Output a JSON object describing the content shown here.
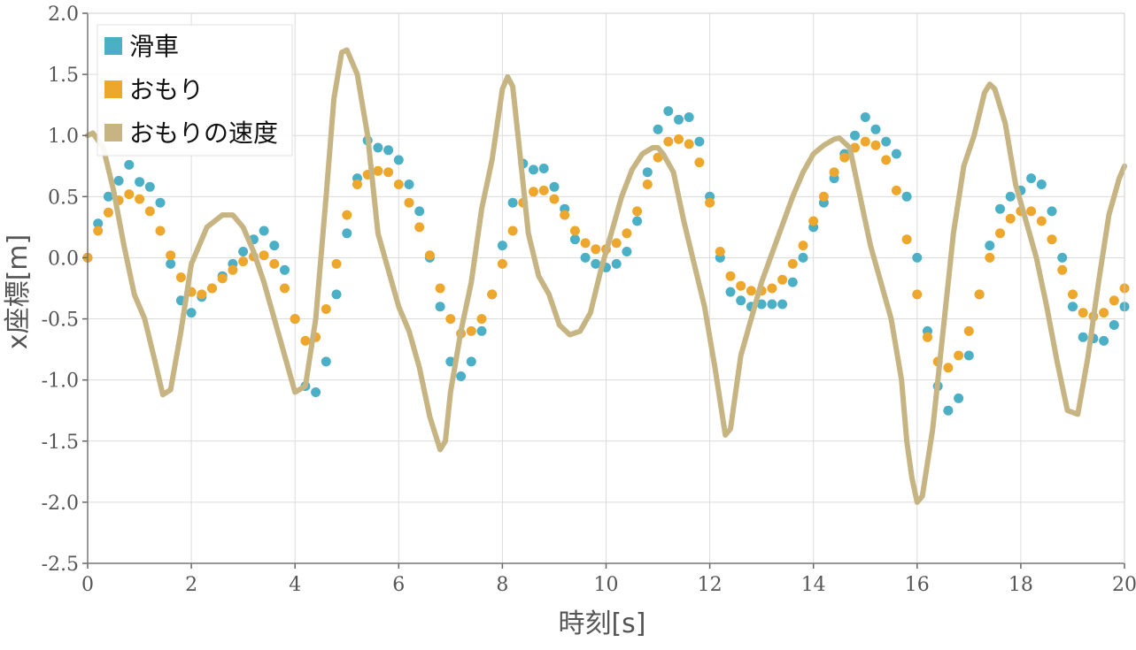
{
  "chart_data": {
    "type": "scatter",
    "xlabel": "時刻[s]",
    "ylabel": "x座標[m]",
    "xlim": [
      0,
      20
    ],
    "ylim": [
      -2.5,
      2.0
    ],
    "x_ticks": [
      "0",
      "2",
      "4",
      "6",
      "8",
      "10",
      "12",
      "14",
      "16",
      "18",
      "20"
    ],
    "y_ticks": [
      "2.0",
      "1.5",
      "1.0",
      "0.5",
      "0.0",
      "-0.5",
      "-1.0",
      "-1.5",
      "-2.0",
      "-2.5"
    ],
    "grid": true,
    "legend_position": "top-left",
    "series": [
      {
        "name": "滑車",
        "style": "points",
        "color": "#4bafc6",
        "points": [
          [
            0.0,
            0.0
          ],
          [
            0.2,
            0.28
          ],
          [
            0.4,
            0.5
          ],
          [
            0.6,
            0.63
          ],
          [
            0.8,
            0.76
          ],
          [
            1.0,
            0.62
          ],
          [
            1.2,
            0.58
          ],
          [
            1.4,
            0.45
          ],
          [
            1.6,
            -0.05
          ],
          [
            1.8,
            -0.35
          ],
          [
            2.0,
            -0.45
          ],
          [
            2.2,
            -0.32
          ],
          [
            2.4,
            -0.25
          ],
          [
            2.6,
            -0.15
          ],
          [
            2.8,
            -0.05
          ],
          [
            3.0,
            0.05
          ],
          [
            3.2,
            0.15
          ],
          [
            3.4,
            0.22
          ],
          [
            3.6,
            0.1
          ],
          [
            3.8,
            -0.1
          ],
          [
            4.0,
            -0.5
          ],
          [
            4.2,
            -1.05
          ],
          [
            4.4,
            -1.1
          ],
          [
            4.6,
            -0.85
          ],
          [
            4.8,
            -0.3
          ],
          [
            5.0,
            0.2
          ],
          [
            5.2,
            0.65
          ],
          [
            5.4,
            0.96
          ],
          [
            5.6,
            0.9
          ],
          [
            5.8,
            0.88
          ],
          [
            6.0,
            0.8
          ],
          [
            6.2,
            0.6
          ],
          [
            6.4,
            0.38
          ],
          [
            6.6,
            0.0
          ],
          [
            6.8,
            -0.4
          ],
          [
            7.0,
            -0.85
          ],
          [
            7.2,
            -0.97
          ],
          [
            7.4,
            -0.85
          ],
          [
            7.6,
            -0.6
          ],
          [
            7.8,
            -0.3
          ],
          [
            8.0,
            0.1
          ],
          [
            8.2,
            0.45
          ],
          [
            8.4,
            0.77
          ],
          [
            8.6,
            0.72
          ],
          [
            8.8,
            0.73
          ],
          [
            9.0,
            0.58
          ],
          [
            9.2,
            0.4
          ],
          [
            9.4,
            0.15
          ],
          [
            9.6,
            0.0
          ],
          [
            9.8,
            -0.05
          ],
          [
            10.0,
            -0.08
          ],
          [
            10.2,
            -0.05
          ],
          [
            10.4,
            0.05
          ],
          [
            10.6,
            0.3
          ],
          [
            10.8,
            0.7
          ],
          [
            11.0,
            1.05
          ],
          [
            11.2,
            1.2
          ],
          [
            11.4,
            1.13
          ],
          [
            11.6,
            1.15
          ],
          [
            11.8,
            0.95
          ],
          [
            12.0,
            0.5
          ],
          [
            12.2,
            0.0
          ],
          [
            12.4,
            -0.28
          ],
          [
            12.6,
            -0.35
          ],
          [
            12.8,
            -0.4
          ],
          [
            13.0,
            -0.38
          ],
          [
            13.2,
            -0.38
          ],
          [
            13.4,
            -0.38
          ],
          [
            13.6,
            -0.2
          ],
          [
            13.8,
            0.0
          ],
          [
            14.0,
            0.25
          ],
          [
            14.2,
            0.45
          ],
          [
            14.4,
            0.65
          ],
          [
            14.6,
            0.85
          ],
          [
            14.8,
            1.0
          ],
          [
            15.0,
            1.15
          ],
          [
            15.2,
            1.05
          ],
          [
            15.4,
            0.95
          ],
          [
            15.6,
            0.85
          ],
          [
            15.8,
            0.5
          ],
          [
            16.0,
            0.0
          ],
          [
            16.2,
            -0.6
          ],
          [
            16.4,
            -1.05
          ],
          [
            16.6,
            -1.25
          ],
          [
            16.8,
            -1.15
          ],
          [
            17.0,
            -0.8
          ],
          [
            17.2,
            -0.3
          ],
          [
            17.4,
            0.1
          ],
          [
            17.6,
            0.4
          ],
          [
            17.8,
            0.5
          ],
          [
            18.0,
            0.55
          ],
          [
            18.2,
            0.65
          ],
          [
            18.4,
            0.6
          ],
          [
            18.6,
            0.38
          ],
          [
            18.8,
            0.0
          ],
          [
            19.0,
            -0.4
          ],
          [
            19.2,
            -0.65
          ],
          [
            19.4,
            -0.66
          ],
          [
            19.6,
            -0.68
          ],
          [
            19.8,
            -0.55
          ],
          [
            20.0,
            -0.4
          ]
        ]
      },
      {
        "name": "おもり",
        "style": "points",
        "color": "#eea72d",
        "points": [
          [
            0.0,
            0.0
          ],
          [
            0.2,
            0.22
          ],
          [
            0.4,
            0.37
          ],
          [
            0.6,
            0.47
          ],
          [
            0.8,
            0.52
          ],
          [
            1.0,
            0.48
          ],
          [
            1.2,
            0.38
          ],
          [
            1.4,
            0.22
          ],
          [
            1.6,
            0.02
          ],
          [
            1.8,
            -0.16
          ],
          [
            2.0,
            -0.28
          ],
          [
            2.2,
            -0.3
          ],
          [
            2.4,
            -0.25
          ],
          [
            2.6,
            -0.17
          ],
          [
            2.8,
            -0.1
          ],
          [
            3.0,
            -0.03
          ],
          [
            3.2,
            0.01
          ],
          [
            3.4,
            0.02
          ],
          [
            3.6,
            -0.05
          ],
          [
            3.8,
            -0.25
          ],
          [
            4.0,
            -0.5
          ],
          [
            4.2,
            -0.68
          ],
          [
            4.4,
            -0.65
          ],
          [
            4.6,
            -0.42
          ],
          [
            4.8,
            -0.05
          ],
          [
            5.0,
            0.35
          ],
          [
            5.2,
            0.6
          ],
          [
            5.4,
            0.68
          ],
          [
            5.6,
            0.71
          ],
          [
            5.8,
            0.7
          ],
          [
            6.0,
            0.6
          ],
          [
            6.2,
            0.45
          ],
          [
            6.4,
            0.25
          ],
          [
            6.6,
            0.02
          ],
          [
            6.8,
            -0.25
          ],
          [
            7.0,
            -0.5
          ],
          [
            7.2,
            -0.62
          ],
          [
            7.4,
            -0.6
          ],
          [
            7.6,
            -0.5
          ],
          [
            7.8,
            -0.3
          ],
          [
            8.0,
            -0.05
          ],
          [
            8.2,
            0.22
          ],
          [
            8.4,
            0.45
          ],
          [
            8.6,
            0.54
          ],
          [
            8.8,
            0.55
          ],
          [
            9.0,
            0.48
          ],
          [
            9.2,
            0.35
          ],
          [
            9.4,
            0.22
          ],
          [
            9.6,
            0.12
          ],
          [
            9.8,
            0.07
          ],
          [
            10.0,
            0.07
          ],
          [
            10.2,
            0.12
          ],
          [
            10.4,
            0.2
          ],
          [
            10.6,
            0.38
          ],
          [
            10.8,
            0.6
          ],
          [
            11.0,
            0.82
          ],
          [
            11.2,
            0.95
          ],
          [
            11.4,
            0.97
          ],
          [
            11.6,
            0.93
          ],
          [
            11.8,
            0.78
          ],
          [
            12.0,
            0.45
          ],
          [
            12.2,
            0.05
          ],
          [
            12.4,
            -0.15
          ],
          [
            12.6,
            -0.23
          ],
          [
            12.8,
            -0.27
          ],
          [
            13.0,
            -0.27
          ],
          [
            13.2,
            -0.25
          ],
          [
            13.4,
            -0.18
          ],
          [
            13.6,
            -0.05
          ],
          [
            13.8,
            0.1
          ],
          [
            14.0,
            0.3
          ],
          [
            14.2,
            0.5
          ],
          [
            14.4,
            0.7
          ],
          [
            14.6,
            0.82
          ],
          [
            14.8,
            0.9
          ],
          [
            15.0,
            0.95
          ],
          [
            15.2,
            0.92
          ],
          [
            15.4,
            0.8
          ],
          [
            15.6,
            0.55
          ],
          [
            15.8,
            0.15
          ],
          [
            16.0,
            -0.3
          ],
          [
            16.2,
            -0.65
          ],
          [
            16.4,
            -0.85
          ],
          [
            16.6,
            -0.9
          ],
          [
            16.8,
            -0.8
          ],
          [
            17.0,
            -0.6
          ],
          [
            17.2,
            -0.3
          ],
          [
            17.4,
            0.0
          ],
          [
            17.6,
            0.2
          ],
          [
            17.8,
            0.32
          ],
          [
            18.0,
            0.38
          ],
          [
            18.2,
            0.38
          ],
          [
            18.4,
            0.3
          ],
          [
            18.6,
            0.15
          ],
          [
            18.8,
            -0.1
          ],
          [
            19.0,
            -0.3
          ],
          [
            19.2,
            -0.45
          ],
          [
            19.4,
            -0.48
          ],
          [
            19.6,
            -0.45
          ],
          [
            19.8,
            -0.35
          ],
          [
            20.0,
            -0.25
          ]
        ]
      },
      {
        "name": "おもりの速度",
        "style": "line",
        "color": "#c7b483",
        "points": [
          [
            0.0,
            1.0
          ],
          [
            0.1,
            1.02
          ],
          [
            0.3,
            0.9
          ],
          [
            0.5,
            0.55
          ],
          [
            0.7,
            0.1
          ],
          [
            0.9,
            -0.3
          ],
          [
            1.1,
            -0.5
          ],
          [
            1.3,
            -0.85
          ],
          [
            1.45,
            -1.12
          ],
          [
            1.6,
            -1.08
          ],
          [
            1.8,
            -0.6
          ],
          [
            2.0,
            -0.05
          ],
          [
            2.3,
            0.25
          ],
          [
            2.6,
            0.35
          ],
          [
            2.8,
            0.35
          ],
          [
            3.0,
            0.25
          ],
          [
            3.2,
            0.05
          ],
          [
            3.4,
            -0.2
          ],
          [
            3.6,
            -0.5
          ],
          [
            3.8,
            -0.8
          ],
          [
            4.0,
            -1.1
          ],
          [
            4.2,
            -1.05
          ],
          [
            4.4,
            -0.5
          ],
          [
            4.6,
            0.5
          ],
          [
            4.75,
            1.3
          ],
          [
            4.9,
            1.68
          ],
          [
            5.0,
            1.7
          ],
          [
            5.2,
            1.5
          ],
          [
            5.4,
            1.0
          ],
          [
            5.6,
            0.2
          ],
          [
            5.8,
            -0.1
          ],
          [
            6.0,
            -0.4
          ],
          [
            6.2,
            -0.6
          ],
          [
            6.4,
            -0.9
          ],
          [
            6.6,
            -1.3
          ],
          [
            6.8,
            -1.57
          ],
          [
            6.9,
            -1.5
          ],
          [
            7.0,
            -1.1
          ],
          [
            7.2,
            -0.6
          ],
          [
            7.4,
            -0.2
          ],
          [
            7.6,
            0.4
          ],
          [
            7.8,
            0.8
          ],
          [
            8.0,
            1.38
          ],
          [
            8.1,
            1.48
          ],
          [
            8.2,
            1.4
          ],
          [
            8.3,
            1.0
          ],
          [
            8.5,
            0.2
          ],
          [
            8.7,
            -0.15
          ],
          [
            8.9,
            -0.3
          ],
          [
            9.1,
            -0.55
          ],
          [
            9.3,
            -0.63
          ],
          [
            9.5,
            -0.6
          ],
          [
            9.7,
            -0.45
          ],
          [
            9.9,
            -0.1
          ],
          [
            10.1,
            0.2
          ],
          [
            10.3,
            0.5
          ],
          [
            10.5,
            0.72
          ],
          [
            10.7,
            0.85
          ],
          [
            10.9,
            0.9
          ],
          [
            11.0,
            0.9
          ],
          [
            11.1,
            0.85
          ],
          [
            11.3,
            0.7
          ],
          [
            11.5,
            0.3
          ],
          [
            11.7,
            -0.05
          ],
          [
            11.9,
            -0.4
          ],
          [
            12.1,
            -0.9
          ],
          [
            12.3,
            -1.45
          ],
          [
            12.4,
            -1.4
          ],
          [
            12.6,
            -0.8
          ],
          [
            12.8,
            -0.5
          ],
          [
            13.0,
            -0.2
          ],
          [
            13.3,
            0.15
          ],
          [
            13.6,
            0.5
          ],
          [
            13.8,
            0.7
          ],
          [
            14.0,
            0.85
          ],
          [
            14.2,
            0.92
          ],
          [
            14.4,
            0.97
          ],
          [
            14.5,
            0.98
          ],
          [
            14.7,
            0.9
          ],
          [
            14.9,
            0.5
          ],
          [
            15.1,
            0.1
          ],
          [
            15.3,
            -0.2
          ],
          [
            15.5,
            -0.5
          ],
          [
            15.7,
            -1.0
          ],
          [
            15.8,
            -1.5
          ],
          [
            15.9,
            -1.8
          ],
          [
            16.0,
            -2.0
          ],
          [
            16.1,
            -1.95
          ],
          [
            16.3,
            -1.4
          ],
          [
            16.5,
            -0.6
          ],
          [
            16.7,
            0.2
          ],
          [
            16.9,
            0.75
          ],
          [
            17.1,
            1.0
          ],
          [
            17.3,
            1.35
          ],
          [
            17.4,
            1.42
          ],
          [
            17.5,
            1.38
          ],
          [
            17.7,
            1.1
          ],
          [
            17.9,
            0.6
          ],
          [
            18.1,
            0.3
          ],
          [
            18.3,
            0.0
          ],
          [
            18.5,
            -0.4
          ],
          [
            18.7,
            -0.85
          ],
          [
            18.9,
            -1.25
          ],
          [
            19.1,
            -1.28
          ],
          [
            19.3,
            -0.8
          ],
          [
            19.5,
            -0.2
          ],
          [
            19.7,
            0.35
          ],
          [
            19.9,
            0.65
          ],
          [
            20.0,
            0.75
          ]
        ]
      }
    ]
  }
}
